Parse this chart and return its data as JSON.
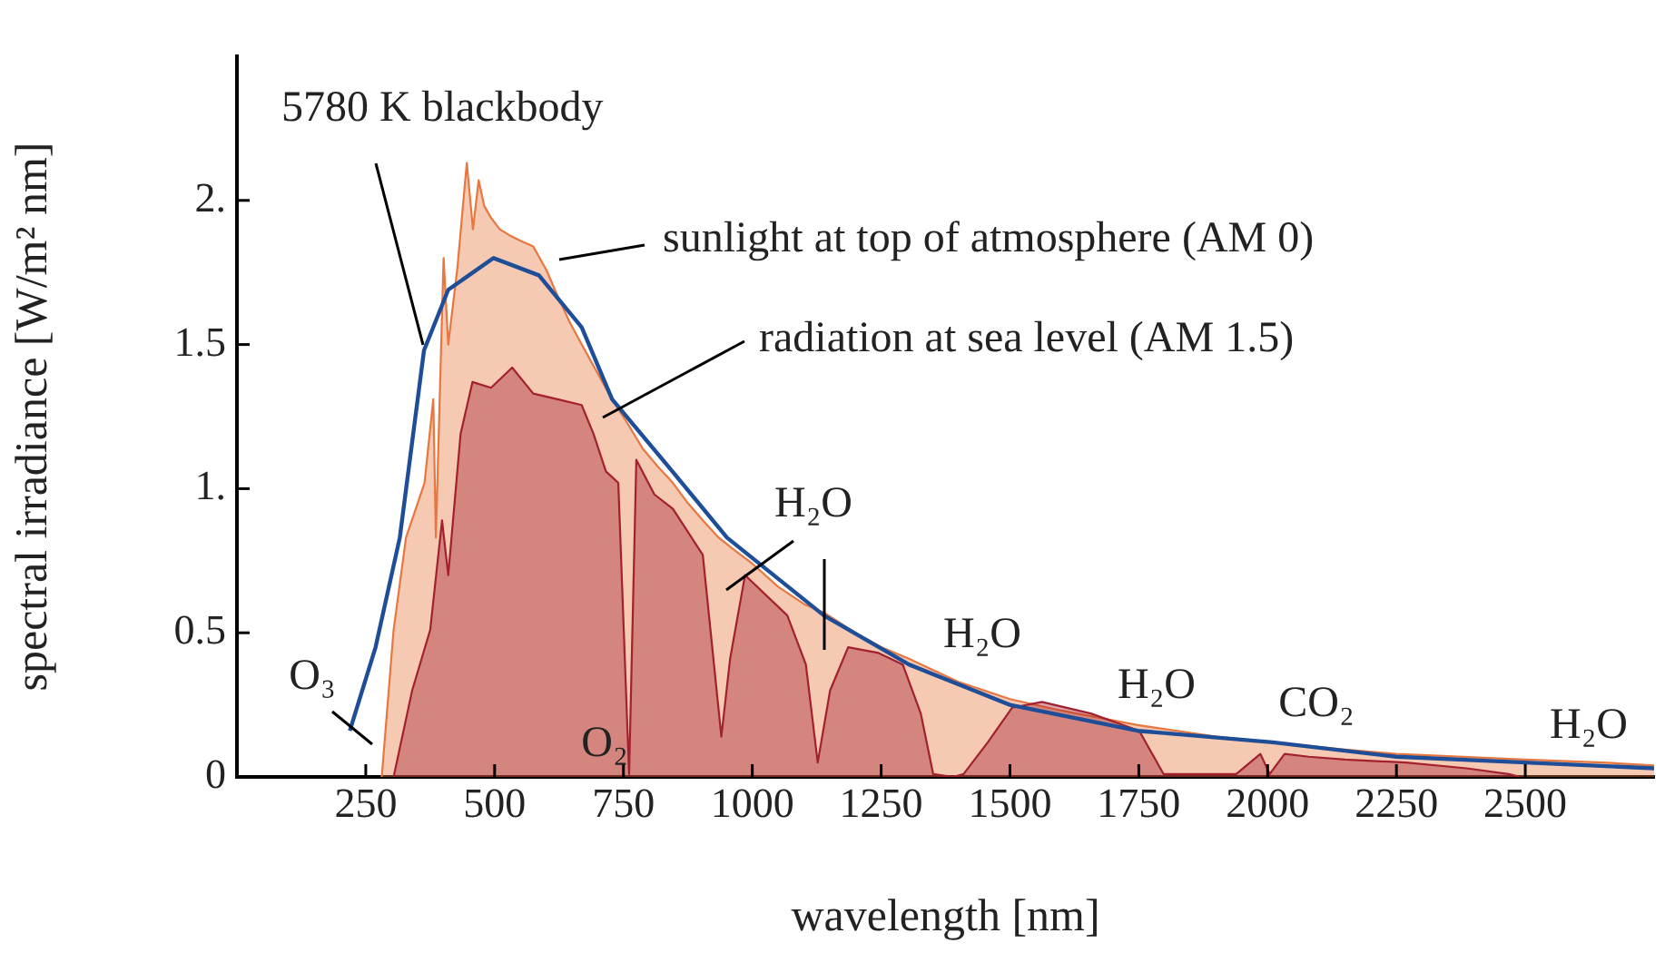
{
  "chart_data": {
    "type": "area",
    "xlabel": "wavelength [nm]",
    "ylabel": "spectral irradiance [W/m² nm]",
    "xlim": [
      0,
      2750
    ],
    "xticks": [
      250,
      500,
      750,
      1000,
      1250,
      1500,
      1750,
      2000,
      2250,
      2500
    ],
    "ylim": [
      0,
      2.5
    ],
    "yticks": [
      0,
      0.5,
      {
        "value": 1,
        "label": "1."
      },
      1.5,
      {
        "value": 2,
        "label": "2."
      }
    ],
    "legend": false,
    "grid": false,
    "series": [
      {
        "name": "sunlight at top of atmosphere (AM 0)",
        "type": "area",
        "color": "#e8773f",
        "x": [
          281,
          304,
          328,
          364,
          381,
          386,
          401,
          410,
          428,
          446,
          458,
          469,
          480,
          493,
          510,
          528,
          550,
          575,
          600,
          622,
          645,
          669,
          700,
          728,
          760,
          787,
          815,
          846,
          875,
          904,
          935,
          963,
          1000,
          1050,
          1100,
          1139,
          1200,
          1250,
          1304,
          1400,
          1500,
          1600,
          1748,
          1900,
          2010,
          2150,
          2250,
          2400,
          2500,
          2650,
          2750
        ],
        "values": [
          0,
          0.51,
          0.83,
          1.02,
          1.31,
          0.83,
          1.8,
          1.5,
          1.77,
          2.13,
          1.9,
          2.07,
          1.98,
          1.94,
          1.9,
          1.88,
          1.86,
          1.84,
          1.76,
          1.67,
          1.58,
          1.5,
          1.4,
          1.31,
          1.22,
          1.14,
          1.08,
          1.02,
          0.95,
          0.89,
          0.83,
          0.79,
          0.74,
          0.66,
          0.6,
          0.57,
          0.5,
          0.45,
          0.41,
          0.33,
          0.27,
          0.23,
          0.18,
          0.14,
          0.12,
          0.095,
          0.08,
          0.068,
          0.06,
          0.05,
          0.04
        ]
      },
      {
        "name": "radiation at sea level (AM 1.5)",
        "type": "area",
        "color": "#a3202f",
        "x": [
          304,
          340,
          375,
          398,
          410,
          434,
          457,
          493,
          534,
          575,
          622,
          669,
          692,
          716,
          740,
          761,
          775,
          810,
          846,
          904,
          940,
          957,
          986,
          1068,
          1104,
          1127,
          1151,
          1186,
          1245,
          1292,
          1327,
          1351,
          1390,
          1410,
          1457,
          1504,
          1562,
          1657,
          1751,
          1798,
          1939,
          1986,
          2004,
          2033,
          2080,
          2151,
          2268,
          2386,
          2468,
          2490
        ],
        "values": [
          0,
          0.3,
          0.51,
          0.89,
          0.7,
          1.19,
          1.37,
          1.35,
          1.42,
          1.33,
          1.31,
          1.29,
          1.19,
          1.06,
          1.02,
          0.01,
          1.1,
          0.98,
          0.93,
          0.77,
          0.14,
          0.41,
          0.7,
          0.56,
          0.39,
          0.05,
          0.3,
          0.45,
          0.43,
          0.39,
          0.22,
          0.01,
          0,
          0.01,
          0.12,
          0.24,
          0.26,
          0.22,
          0.16,
          0.01,
          0.01,
          0.08,
          0.01,
          0.08,
          0.07,
          0.06,
          0.05,
          0.03,
          0.01,
          0
        ]
      },
      {
        "name": "5780 K blackbody",
        "type": "line",
        "color": "#1f4e99",
        "x": [
          219,
          269,
          316,
          363,
          410,
          498,
          586,
          669,
          728,
          845,
          951,
          1139,
          1304,
          1500,
          1748,
          2010,
          2250,
          2500,
          2750
        ],
        "values": [
          0.16,
          0.45,
          0.83,
          1.48,
          1.69,
          1.8,
          1.74,
          1.56,
          1.31,
          1.06,
          0.83,
          0.56,
          0.39,
          0.25,
          0.16,
          0.12,
          0.07,
          0.05,
          0.03
        ]
      }
    ],
    "annotations": [
      "O₃",
      "O₂",
      "H₂O",
      "H₂O",
      "H₂O",
      "CO₂",
      "H₂O"
    ]
  }
}
